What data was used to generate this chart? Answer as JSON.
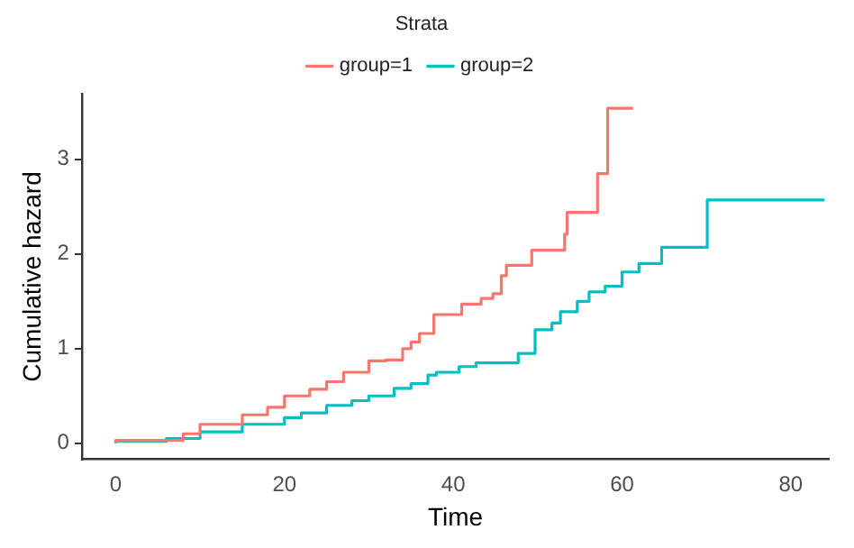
{
  "chart_data": {
    "type": "step",
    "xlabel": "Time",
    "ylabel": "Cumulative hazard",
    "legend_title": "Strata",
    "legend": "top",
    "grid": false,
    "xlim": [
      -4,
      84.5
    ],
    "xticks": [
      0,
      20,
      40,
      60,
      80
    ],
    "ylim": [
      -0.17,
      3.69
    ],
    "yticks": [
      0,
      1,
      2,
      3
    ],
    "series": [
      {
        "name": "group=1",
        "color": "#f8766d",
        "x": [
          0,
          8,
          10,
          15,
          18,
          20,
          23,
          25,
          27,
          30,
          32,
          34,
          35,
          36,
          37.7,
          41,
          43.3,
          44.7,
          45.7,
          46.3,
          49.3,
          53.2,
          53.5,
          57.1,
          58.3,
          60,
          61.3
        ],
        "values": [
          0,
          0.03,
          0.1,
          0.2,
          0.3,
          0.38,
          0.5,
          0.57,
          0.65,
          0.75,
          0.87,
          0.88,
          1.0,
          1.07,
          1.16,
          1.36,
          1.47,
          1.53,
          1.58,
          1.77,
          1.88,
          2.04,
          2.21,
          2.44,
          2.85,
          3.54,
          3.54
        ]
      },
      {
        "name": "group=2",
        "color": "#00bfc4",
        "x": [
          0,
          6,
          10,
          15,
          20,
          22,
          25,
          28,
          30,
          33,
          35,
          37,
          38,
          40.7,
          42.7,
          47.7,
          49.7,
          51.7,
          52.7,
          54.7,
          56.1,
          58,
          60,
          62,
          64.7,
          70.1,
          70.7,
          84
        ],
        "values": [
          0,
          0.02,
          0.05,
          0.12,
          0.2,
          0.27,
          0.32,
          0.4,
          0.45,
          0.5,
          0.58,
          0.63,
          0.72,
          0.75,
          0.81,
          0.85,
          0.95,
          1.2,
          1.27,
          1.39,
          1.5,
          1.6,
          1.66,
          1.81,
          1.9,
          2.07,
          2.57,
          2.57
        ]
      }
    ]
  }
}
